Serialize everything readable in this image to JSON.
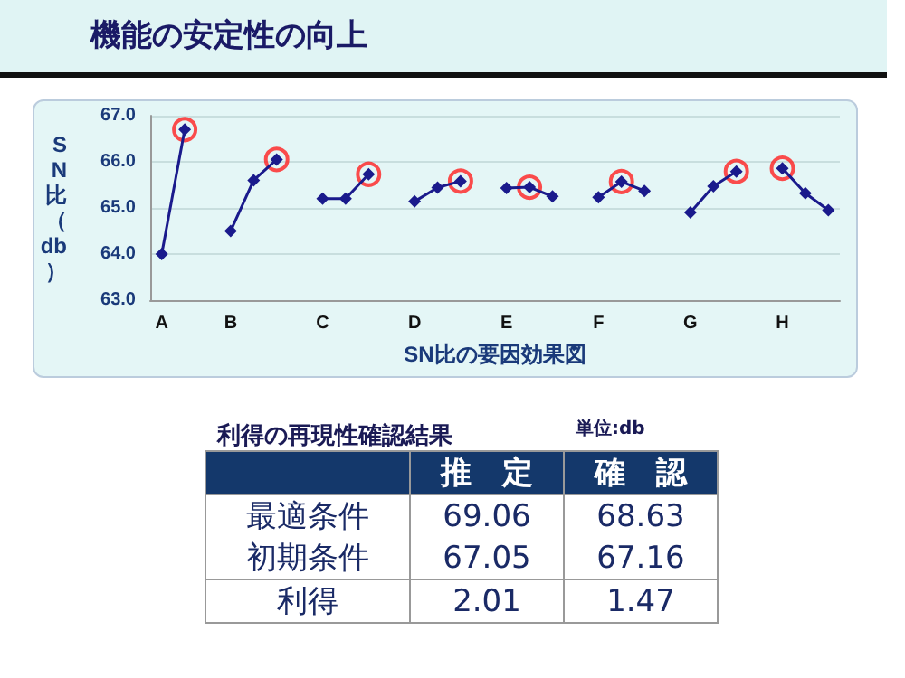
{
  "chart_data": {
    "type": "line",
    "title": "機能の安定性の向上",
    "xlabel": "SN比の要因効果図",
    "ylabel": "SN比（db）",
    "categories": [
      "A",
      null,
      null,
      "B",
      null,
      null,
      null,
      "C",
      null,
      null,
      null,
      "D",
      null,
      null,
      null,
      "E",
      null,
      null,
      null,
      "F",
      null,
      null,
      null,
      "G",
      null,
      null,
      null,
      "H",
      null,
      null
    ],
    "series": [
      {
        "color": "#1a1a8c",
        "values": [
          64.0,
          66.7,
          null,
          null,
          null,
          null,
          null,
          null,
          null,
          null,
          null,
          null,
          null,
          null,
          null,
          null,
          null,
          null,
          null,
          null,
          null,
          null,
          null,
          null,
          null,
          null,
          null,
          null,
          null,
          null
        ]
      },
      {
        "color": "#1a1a8c",
        "values": [
          null,
          null,
          null,
          64.5,
          65.6,
          66.05,
          null,
          null,
          null,
          null,
          null,
          null,
          null,
          null,
          null,
          null,
          null,
          null,
          null,
          null,
          null,
          null,
          null,
          null,
          null,
          null,
          null,
          null,
          null,
          null
        ]
      },
      {
        "color": "#1a1a8c",
        "values": [
          null,
          null,
          null,
          null,
          null,
          null,
          null,
          65.2,
          65.2,
          65.73,
          null,
          null,
          null,
          null,
          null,
          null,
          null,
          null,
          null,
          null,
          null,
          null,
          null,
          null,
          null,
          null,
          null,
          null,
          null,
          null
        ]
      },
      {
        "color": "#1a1a8c",
        "values": [
          null,
          null,
          null,
          null,
          null,
          null,
          null,
          null,
          null,
          null,
          null,
          65.14,
          65.44,
          65.58,
          null,
          null,
          null,
          null,
          null,
          null,
          null,
          null,
          null,
          null,
          null,
          null,
          null,
          null,
          null,
          null
        ]
      },
      {
        "color": "#1a1a8c",
        "values": [
          null,
          null,
          null,
          null,
          null,
          null,
          null,
          null,
          null,
          null,
          null,
          null,
          null,
          null,
          null,
          65.43,
          65.45,
          65.25,
          null,
          null,
          null,
          null,
          null,
          null,
          null,
          null,
          null,
          null,
          null,
          null
        ]
      },
      {
        "color": "#1a1a8c",
        "values": [
          null,
          null,
          null,
          null,
          null,
          null,
          null,
          null,
          null,
          null,
          null,
          null,
          null,
          null,
          null,
          null,
          null,
          null,
          null,
          65.23,
          65.57,
          65.37,
          null,
          null,
          null,
          null,
          null,
          null,
          null,
          null
        ]
      },
      {
        "color": "#1a1a8c",
        "values": [
          null,
          null,
          null,
          null,
          null,
          null,
          null,
          null,
          null,
          null,
          null,
          null,
          null,
          null,
          null,
          null,
          null,
          null,
          null,
          null,
          null,
          null,
          null,
          64.9,
          65.47,
          65.79,
          null,
          null,
          null,
          null
        ]
      },
      {
        "color": "#1a1a8c",
        "values": [
          null,
          null,
          null,
          null,
          null,
          null,
          null,
          null,
          null,
          null,
          null,
          null,
          null,
          null,
          null,
          null,
          null,
          null,
          null,
          null,
          null,
          null,
          null,
          null,
          null,
          null,
          null,
          65.86,
          65.32,
          64.95
        ]
      },
      {
        "type": "scatter",
        "marker": "circle",
        "color": "#ff2020",
        "values": [
          null,
          66.7,
          null,
          null,
          null,
          66.05,
          null,
          null,
          null,
          65.73,
          null,
          null,
          null,
          65.58,
          null,
          null,
          65.45,
          null,
          null,
          null,
          65.57,
          null,
          null,
          null,
          null,
          65.79,
          null,
          65.86,
          null,
          null
        ]
      }
    ],
    "ylim": [
      63,
      67
    ],
    "yticks": [
      {
        "value": 63,
        "label": "63.0"
      },
      {
        "value": 64,
        "label": "64.0"
      },
      {
        "value": 65,
        "label": "65.0"
      },
      {
        "value": 66,
        "label": "66.0"
      },
      {
        "value": 67,
        "label": "67.0"
      }
    ],
    "grid": "y",
    "marker": "diamond",
    "line_style": "solid",
    "annotations": [
      "利得の再現性確認結果",
      "単位:db",
      "推　定",
      "確　認",
      "最適条件",
      "69.06",
      "68.63",
      "初期条件",
      "67.05",
      "67.16",
      "利得",
      "2.01",
      "1.47"
    ]
  }
}
